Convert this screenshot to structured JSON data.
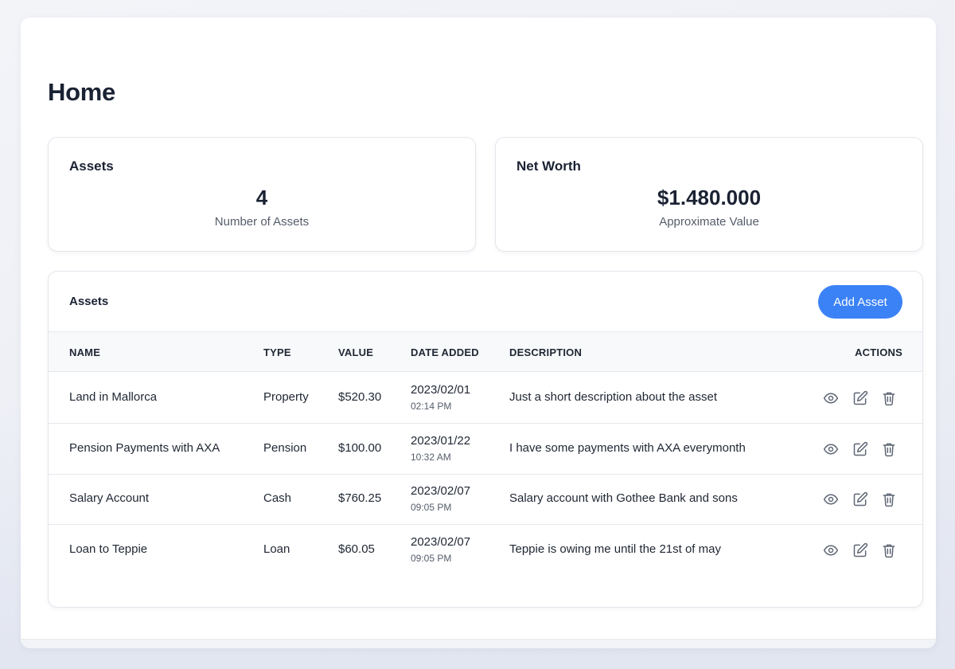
{
  "page": {
    "title": "Home"
  },
  "stats": {
    "assets": {
      "title": "Assets",
      "value": "4",
      "caption": "Number of Assets"
    },
    "net_worth": {
      "title": "Net Worth",
      "value": "$1.480.000",
      "caption": "Approximate Value"
    }
  },
  "table": {
    "title": "Assets",
    "add_label": "Add Asset",
    "columns": {
      "name": "NAME",
      "type": "TYPE",
      "value": "VALUE",
      "date": "DATE ADDED",
      "description": "DESCRIPTION",
      "actions": "ACTIONS"
    },
    "rows": [
      {
        "name": "Land in Mallorca",
        "type": "Property",
        "value": "$520.30",
        "date": "2023/02/01",
        "time": "02:14 PM",
        "description": "Just a short description about the asset"
      },
      {
        "name": "Pension Payments with AXA",
        "type": "Pension",
        "value": "$100.00",
        "date": "2023/01/22",
        "time": "10:32 AM",
        "description": "I have some payments with AXA everymonth"
      },
      {
        "name": "Salary Account",
        "type": "Cash",
        "value": "$760.25",
        "date": "2023/02/07",
        "time": "09:05 PM",
        "description": "Salary account with Gothee Bank and sons"
      },
      {
        "name": "Loan to Teppie",
        "type": "Loan",
        "value": "$60.05",
        "date": "2023/02/07",
        "time": "09:05 PM",
        "description": "Teppie is owing me until the 21st of may"
      }
    ],
    "row_actions": [
      "eye-icon",
      "pencil-square-icon",
      "trash-icon"
    ]
  },
  "colors": {
    "accent": "#3b82f6",
    "text": "#1f2633",
    "muted": "#555d6b",
    "icon": "#5f6775"
  }
}
